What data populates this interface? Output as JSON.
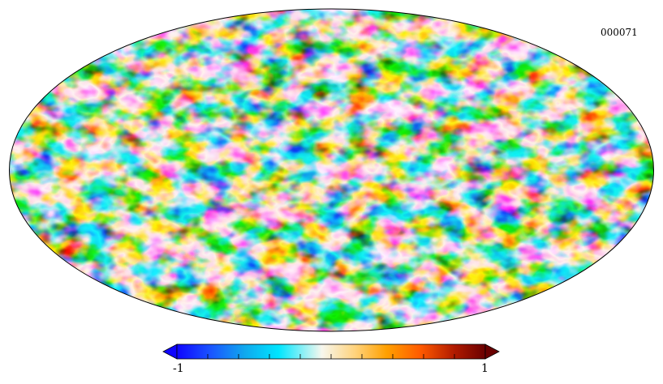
{
  "map": {
    "title": "000071",
    "projection": "mollweide",
    "description_hidden": false
  },
  "colorbar": {
    "min_label": "-1",
    "max_label": "1",
    "min": -1,
    "max": 1,
    "tick_count": 10,
    "stops": [
      "#0f05ff",
      "#1a55ff",
      "#10a8ee",
      "#00e6ff",
      "#f7f7ee",
      "#ffd27a",
      "#ffa000",
      "#ff5a00",
      "#b01a00",
      "#6a0000"
    ]
  },
  "colors": {
    "outline": "#000000",
    "background": "#ffffff"
  }
}
